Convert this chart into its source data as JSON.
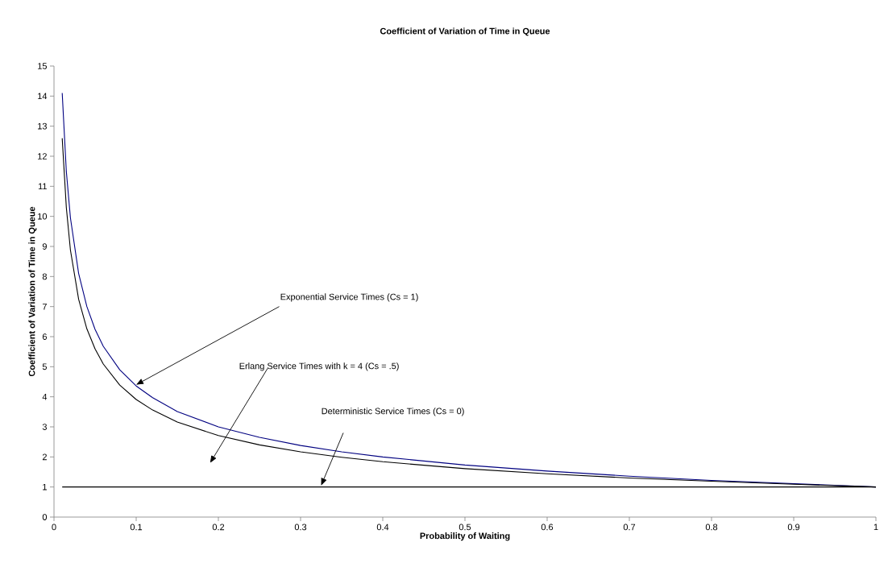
{
  "chart_data": {
    "type": "line",
    "title": "Coefficient of Variation of Time in Queue",
    "xlabel": "Probability of Waiting",
    "ylabel": "Coefficient of Variation of Time in Queue",
    "xlim": [
      0,
      1
    ],
    "ylim": [
      0,
      15
    ],
    "xticks": [
      0,
      0.1,
      0.2,
      0.3,
      0.4,
      0.5,
      0.6,
      0.7,
      0.8,
      0.9,
      1
    ],
    "yticks": [
      0,
      1,
      2,
      3,
      4,
      5,
      6,
      7,
      8,
      9,
      10,
      11,
      12,
      13,
      14,
      15
    ],
    "grid": false,
    "marker": "none",
    "line_style": "solid",
    "series": [
      {
        "color": "#000080",
        "x": [
          0.01,
          0.015,
          0.02,
          0.03,
          0.04,
          0.05,
          0.06,
          0.08,
          0.1,
          0.12,
          0.15,
          0.2,
          0.25,
          0.3,
          0.35,
          0.4,
          0.5,
          0.6,
          0.7,
          0.8,
          0.9,
          1.0
        ],
        "values": [
          14.1,
          11.5,
          9.95,
          8.1,
          7.0,
          6.24,
          5.68,
          4.9,
          4.36,
          3.97,
          3.51,
          3.0,
          2.65,
          2.38,
          2.17,
          2.0,
          1.73,
          1.53,
          1.36,
          1.22,
          1.11,
          1.0
        ]
      },
      {
        "color": "#000000",
        "x": [
          0.01,
          0.015,
          0.02,
          0.03,
          0.04,
          0.05,
          0.06,
          0.08,
          0.1,
          0.12,
          0.15,
          0.2,
          0.25,
          0.3,
          0.35,
          0.4,
          0.5,
          0.6,
          0.7,
          0.8,
          0.9,
          1.0
        ],
        "values": [
          12.6,
          10.3,
          8.88,
          7.24,
          6.26,
          5.59,
          5.09,
          4.39,
          3.91,
          3.56,
          3.16,
          2.71,
          2.4,
          2.17,
          1.99,
          1.84,
          1.61,
          1.44,
          1.3,
          1.19,
          1.09,
          1.0
        ]
      },
      {
        "color": "#000000",
        "x": [
          0.01,
          1.0
        ],
        "values": [
          1,
          1
        ]
      }
    ],
    "annotations": [
      {
        "text": "Exponential Service Times (Cs = 1)",
        "x": 0.1,
        "y": 4.4
      },
      "Erlang Service Times with k = 4 (Cs = .5)",
      "Deterministic Service Times (Cs = 0)"
    ]
  }
}
